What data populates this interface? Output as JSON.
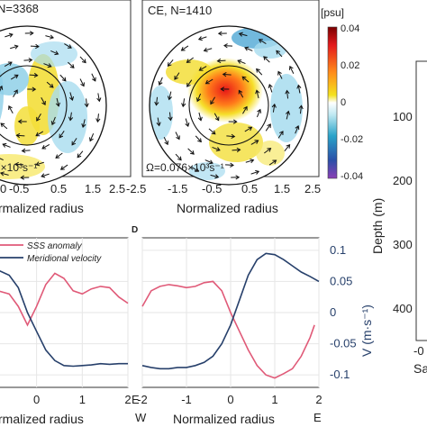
{
  "panel_top_left": {
    "label": "N=3368",
    "omega": "7×10³s⁻¹",
    "xlabel": "rmalized radius"
  },
  "panel_top_mid": {
    "label": "CE, N=1410",
    "omega": "Ω=0.076×10³s⁻¹",
    "xlabel": "Normalized radius"
  },
  "top_xticks": {
    "left": [
      "0",
      "-0.5",
      "0.5",
      "1.5",
      "2.5"
    ],
    "mid": [
      "-2.5",
      "-1.5",
      "-0.5",
      "0.5",
      "1.5",
      "2.5"
    ]
  },
  "colorbar": {
    "title": "[psu]",
    "ticks": [
      "0.04",
      "0.02",
      "0",
      "-0.02",
      "-0.04"
    ]
  },
  "right_panel": {
    "ylabel": "Depth (m)",
    "yticks": [
      "100",
      "200",
      "300",
      "400"
    ],
    "xtick": "-0",
    "xlabel": "Sa"
  },
  "panel_d": {
    "letter": "D"
  },
  "bottom_axes": {
    "xlabel_left": "rmalized radius",
    "xlabel_right": "Normalized radius",
    "left_end_label": "E",
    "right_start_label": "W",
    "right_end_label": "E",
    "right_ylabel": "V (m·s⁻¹)"
  },
  "chart_data": [
    {
      "type": "line",
      "panel": "bottom-left",
      "xlabel": "rmalized radius",
      "xlim": [
        -0.9,
        2
      ],
      "x_ticks": [
        0,
        1,
        2
      ],
      "legend": [
        "SSS anomaly",
        "Meridional velocity"
      ],
      "legend_position": "top",
      "grid": true,
      "series": [
        {
          "name": "SSS anomaly",
          "color": "#e05a78",
          "x": [
            -0.9,
            -0.6,
            -0.4,
            -0.2,
            0,
            0.2,
            0.4,
            0.6,
            0.8,
            1.0,
            1.2,
            1.4,
            1.6,
            1.8,
            2.0
          ],
          "y": [
            0.036,
            0.03,
            0.01,
            -0.02,
            0.01,
            0.045,
            0.063,
            0.055,
            0.035,
            0.03,
            0.038,
            0.042,
            0.04,
            0.025,
            0.015
          ]
        },
        {
          "name": "Meridional velocity",
          "color": "#27406b",
          "x": [
            -0.9,
            -0.6,
            -0.4,
            -0.2,
            0,
            0.2,
            0.4,
            0.6,
            0.8,
            1.0,
            1.2,
            1.4,
            1.6,
            1.8,
            2.0
          ],
          "y": [
            0.07,
            0.06,
            0.04,
            0.0,
            -0.03,
            -0.06,
            -0.077,
            -0.085,
            -0.086,
            -0.085,
            -0.084,
            -0.082,
            -0.083,
            -0.082,
            -0.082
          ]
        }
      ]
    },
    {
      "type": "line",
      "panel": "bottom-right",
      "xlabel": "Normalized radius",
      "xlim": [
        -2,
        2
      ],
      "x_ticks": [
        -2,
        -1,
        0,
        1,
        2
      ],
      "ylim": [
        -0.12,
        0.12
      ],
      "y_ticks": [
        0.1,
        0.05,
        0,
        -0.05,
        -0.1
      ],
      "ylabel": "V (m·s⁻¹)",
      "grid": true,
      "series": [
        {
          "name": "SSS anomaly",
          "color": "#e05a78",
          "x": [
            -2,
            -1.8,
            -1.6,
            -1.4,
            -1.2,
            -1.0,
            -0.8,
            -0.6,
            -0.4,
            -0.2,
            0,
            0.2,
            0.4,
            0.6,
            0.8,
            1.0,
            1.2,
            1.4,
            1.6,
            1.8,
            1.9
          ],
          "y": [
            0.01,
            0.035,
            0.042,
            0.045,
            0.043,
            0.04,
            0.042,
            0.048,
            0.05,
            0.035,
            0.0,
            -0.03,
            -0.06,
            -0.085,
            -0.1,
            -0.105,
            -0.098,
            -0.09,
            -0.07,
            -0.04,
            -0.02
          ]
        },
        {
          "name": "Meridional velocity",
          "color": "#27406b",
          "x": [
            -2,
            -1.8,
            -1.6,
            -1.4,
            -1.2,
            -1.0,
            -0.8,
            -0.6,
            -0.4,
            -0.2,
            0,
            0.2,
            0.4,
            0.6,
            0.8,
            1.0,
            1.2,
            1.4,
            1.6,
            1.8,
            2.0
          ],
          "y": [
            -0.085,
            -0.088,
            -0.09,
            -0.09,
            -0.088,
            -0.088,
            -0.085,
            -0.08,
            -0.07,
            -0.05,
            -0.02,
            0.02,
            0.06,
            0.085,
            0.095,
            0.093,
            0.085,
            0.075,
            0.065,
            0.058,
            0.05
          ]
        }
      ]
    }
  ]
}
